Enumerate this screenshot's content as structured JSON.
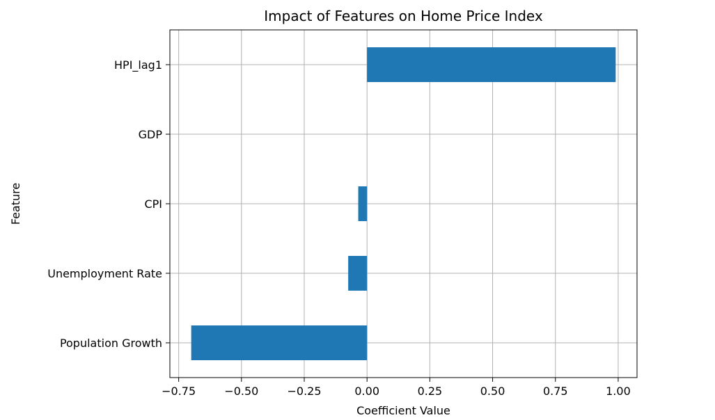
{
  "chart_data": {
    "type": "bar",
    "orientation": "horizontal",
    "title": "Impact of Features on Home Price Index",
    "xlabel": "Coefficient Value",
    "ylabel": "Feature",
    "categories": [
      "Population Growth",
      "Unemployment Rate",
      "CPI",
      "GDP",
      "HPI_lag1"
    ],
    "values": [
      -0.7,
      -0.075,
      -0.035,
      0.0,
      0.99
    ],
    "xlim": [
      -0.785,
      1.075
    ],
    "xticks": [
      -0.75,
      -0.5,
      -0.25,
      0.0,
      0.25,
      0.5,
      0.75,
      1.0
    ],
    "xtick_labels": [
      "−0.75",
      "−0.50",
      "−0.25",
      "0.00",
      "0.25",
      "0.50",
      "0.75",
      "1.00"
    ],
    "grid": true,
    "legend": "none",
    "bar_color": "#1f77b4",
    "grid_color": "#b0b0b0"
  }
}
